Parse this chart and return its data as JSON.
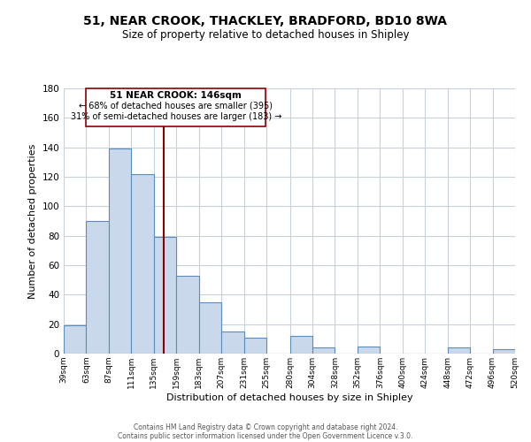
{
  "title": "51, NEAR CROOK, THACKLEY, BRADFORD, BD10 8WA",
  "subtitle": "Size of property relative to detached houses in Shipley",
  "xlabel": "Distribution of detached houses by size in Shipley",
  "ylabel": "Number of detached properties",
  "bar_color": "#c9d9eb",
  "bar_edge_color": "#5b8db8",
  "background_color": "#ffffff",
  "grid_color": "#c8d0d8",
  "marker_value": 146,
  "marker_color": "#8b0000",
  "annotation_title": "51 NEAR CROOK: 146sqm",
  "annotation_line1": "← 68% of detached houses are smaller (395)",
  "annotation_line2": "31% of semi-detached houses are larger (183) →",
  "bin_edges": [
    39,
    63,
    87,
    111,
    135,
    159,
    183,
    207,
    231,
    255,
    280,
    304,
    328,
    352,
    376,
    400,
    424,
    448,
    472,
    496,
    520
  ],
  "bin_labels": [
    "39sqm",
    "63sqm",
    "87sqm",
    "111sqm",
    "135sqm",
    "159sqm",
    "183sqm",
    "207sqm",
    "231sqm",
    "255sqm",
    "280sqm",
    "304sqm",
    "328sqm",
    "352sqm",
    "376sqm",
    "400sqm",
    "424sqm",
    "448sqm",
    "472sqm",
    "496sqm",
    "520sqm"
  ],
  "counts": [
    19,
    90,
    139,
    122,
    79,
    53,
    35,
    15,
    11,
    0,
    12,
    4,
    0,
    5,
    0,
    0,
    0,
    4,
    0,
    3
  ],
  "ylim": [
    0,
    180
  ],
  "yticks": [
    0,
    20,
    40,
    60,
    80,
    100,
    120,
    140,
    160,
    180
  ],
  "footer1": "Contains HM Land Registry data © Crown copyright and database right 2024.",
  "footer2": "Contains public sector information licensed under the Open Government Licence v.3.0."
}
